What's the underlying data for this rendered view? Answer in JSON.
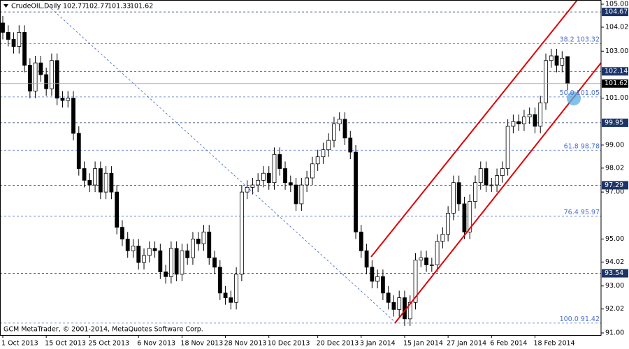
{
  "chart_data": {
    "type": "candlestick",
    "symbol": "CrudeOIL,Daily",
    "footer": "GCM MetaTrader, © 2001-2014, MetaQuotes Software Corp.",
    "up_color": "#ffffff",
    "down_color": "#000000",
    "categories": [
      "1 Oct 2013",
      null,
      null,
      null,
      null,
      null,
      null,
      null,
      "15 Oct 2013",
      null,
      null,
      null,
      null,
      null,
      null,
      null,
      "25 Oct 2013",
      null,
      null,
      null,
      null,
      null,
      null,
      null,
      null,
      "6 Nov 2013",
      null,
      null,
      null,
      null,
      null,
      null,
      null,
      "18 Nov 2013",
      null,
      null,
      null,
      null,
      null,
      null,
      null,
      "28 Nov 2013",
      null,
      null,
      null,
      null,
      null,
      null,
      null,
      "10 Dec 2013",
      null,
      null,
      null,
      null,
      null,
      null,
      null,
      null,
      "20 Dec 2013",
      null,
      null,
      null,
      null,
      null,
      null,
      null,
      "3 Jan 2014",
      null,
      null,
      null,
      null,
      null,
      null,
      null,
      "15 Jan 2014",
      null,
      null,
      null,
      null,
      null,
      null,
      null,
      "27 Jan 2014",
      null,
      null,
      null,
      null,
      null,
      null,
      null,
      "6 Feb 2014",
      null,
      null,
      null,
      null,
      null,
      null,
      null,
      "18 Feb 2014",
      null,
      null,
      null,
      null,
      null,
      null
    ],
    "open": [
      104.2,
      103.8,
      103.5,
      103.2,
      103.8,
      102.4,
      101.3,
      102.5,
      102.0,
      101.4,
      102.6,
      101.0,
      100.9,
      101.0,
      99.5,
      98.0,
      97.5,
      97.3,
      98.0,
      97.0,
      97.8,
      97.0,
      95.5,
      95.0,
      94.5,
      94.7,
      94.0,
      94.3,
      94.6,
      94.5,
      93.6,
      93.4,
      94.6,
      93.5,
      94.5,
      94.2,
      95.0,
      94.8,
      95.3,
      94.2,
      93.8,
      92.7,
      92.5,
      92.3,
      93.5,
      97.0,
      97.2,
      97.3,
      97.5,
      97.8,
      97.4,
      98.6,
      98.0,
      97.4,
      97.3,
      96.5,
      97.3,
      97.6,
      98.2,
      98.5,
      98.8,
      99.2,
      99.9,
      100.1,
      99.3,
      98.7,
      95.3,
      94.5,
      93.8,
      93.2,
      93.4,
      92.7,
      92.3,
      92.0,
      92.5,
      91.6,
      92.3,
      94.1,
      94.2,
      93.9,
      93.9,
      94.9,
      95.2,
      96.1,
      97.4,
      96.5,
      95.3,
      96.6,
      97.4,
      98.0,
      97.3,
      97.3,
      97.7,
      98.0,
      99.8,
      100.0,
      99.9,
      100.2,
      100.3,
      99.8,
      100.8,
      102.6,
      102.8,
      102.4,
      102.77
    ],
    "high": [
      104.5,
      104.1,
      103.8,
      104.1,
      104.1,
      102.7,
      102.8,
      102.8,
      102.3,
      102.9,
      102.9,
      101.3,
      101.3,
      101.3,
      99.8,
      98.3,
      97.8,
      98.3,
      98.3,
      98.1,
      98.1,
      97.3,
      95.8,
      95.3,
      95.0,
      95.0,
      94.6,
      94.9,
      94.9,
      94.8,
      93.9,
      94.9,
      94.9,
      94.8,
      94.8,
      95.3,
      95.3,
      95.6,
      95.6,
      94.5,
      94.1,
      93.0,
      92.8,
      93.8,
      97.3,
      97.5,
      97.6,
      97.8,
      98.1,
      98.1,
      98.9,
      98.9,
      98.3,
      97.7,
      97.6,
      97.6,
      97.9,
      98.5,
      98.8,
      99.1,
      99.5,
      100.2,
      100.4,
      100.4,
      99.6,
      99.0,
      95.6,
      94.8,
      94.1,
      93.7,
      93.7,
      93.0,
      92.6,
      92.8,
      92.8,
      92.6,
      94.4,
      94.5,
      94.5,
      94.2,
      95.2,
      95.5,
      96.4,
      97.7,
      97.7,
      96.8,
      96.9,
      97.7,
      98.3,
      98.3,
      97.6,
      98.0,
      98.3,
      100.1,
      100.3,
      100.3,
      100.5,
      100.6,
      100.6,
      101.1,
      102.9,
      103.1,
      103.1,
      103.0,
      102.77
    ],
    "low": [
      103.5,
      103.2,
      102.9,
      102.9,
      102.1,
      101.0,
      101.0,
      101.7,
      101.1,
      101.1,
      100.7,
      100.6,
      100.6,
      99.2,
      97.7,
      97.2,
      97.0,
      97.0,
      96.7,
      96.7,
      96.7,
      95.2,
      94.7,
      94.2,
      94.2,
      93.7,
      93.7,
      94.0,
      94.2,
      93.3,
      93.1,
      93.1,
      93.2,
      93.2,
      93.9,
      93.9,
      94.5,
      94.5,
      93.9,
      93.5,
      92.4,
      92.2,
      92.0,
      92.0,
      93.2,
      96.7,
      96.9,
      97.0,
      97.2,
      97.1,
      97.1,
      97.7,
      97.1,
      97.0,
      96.2,
      96.2,
      97.0,
      97.3,
      97.9,
      98.2,
      98.5,
      98.9,
      99.6,
      99.0,
      98.4,
      95.0,
      94.2,
      93.5,
      92.9,
      92.9,
      92.4,
      92.0,
      91.7,
      91.7,
      91.3,
      91.3,
      92.0,
      93.8,
      93.6,
      93.6,
      93.6,
      94.6,
      94.9,
      95.8,
      96.2,
      95.0,
      95.0,
      96.3,
      97.1,
      97.0,
      97.0,
      97.0,
      97.4,
      97.7,
      99.5,
      99.6,
      99.6,
      99.9,
      99.5,
      99.5,
      100.5,
      102.3,
      102.1,
      102.1,
      101.33
    ],
    "close": [
      103.8,
      103.5,
      103.2,
      103.8,
      102.4,
      101.3,
      102.5,
      102.0,
      101.4,
      102.6,
      101.0,
      100.9,
      101.0,
      99.5,
      98.0,
      97.5,
      97.3,
      98.0,
      97.0,
      97.8,
      97.0,
      95.5,
      95.0,
      94.5,
      94.7,
      94.0,
      94.3,
      94.6,
      94.5,
      93.6,
      93.4,
      94.6,
      93.5,
      94.5,
      94.2,
      95.0,
      94.8,
      95.3,
      94.2,
      93.8,
      92.7,
      92.5,
      92.3,
      93.5,
      97.0,
      97.2,
      97.3,
      97.5,
      97.8,
      97.4,
      98.6,
      98.0,
      97.4,
      97.3,
      96.5,
      97.3,
      97.6,
      98.2,
      98.5,
      98.8,
      99.2,
      99.9,
      100.1,
      99.3,
      98.7,
      95.3,
      94.5,
      93.8,
      93.2,
      93.4,
      92.7,
      92.3,
      92.0,
      92.5,
      91.6,
      92.3,
      94.1,
      94.2,
      93.9,
      93.9,
      94.9,
      95.2,
      96.1,
      97.4,
      96.5,
      95.3,
      96.6,
      97.4,
      98.0,
      97.3,
      97.3,
      97.7,
      98.0,
      99.8,
      100.0,
      99.9,
      100.2,
      100.3,
      99.8,
      100.8,
      102.6,
      102.8,
      102.4,
      102.7,
      101.62
    ],
    "ylim": [
      91,
      105
    ],
    "yticks": [
      {
        "value": 105,
        "label": "105.00"
      },
      104.02,
      {
        "value": 103,
        "label": "103.00"
      },
      {
        "value": 101,
        "label": "101.00"
      },
      {
        "value": 99,
        "label": "99.00"
      },
      98.02,
      {
        "value": 97,
        "label": "97.00"
      },
      {
        "value": 95,
        "label": "95.00"
      },
      94.02,
      {
        "value": 93,
        "label": "93.00"
      },
      92.02,
      {
        "value": 91,
        "label": "91.00"
      }
    ],
    "levels": [
      104.67,
      102.14,
      99.95,
      97.29,
      93.54
    ],
    "level_color": "#1c3468",
    "fibonacci": [
      {
        "level": "38.2",
        "value": 103.32
      },
      {
        "level": "50.0",
        "value": 101.05
      },
      {
        "level": "61.8",
        "value": 98.78
      },
      {
        "level": "76.4",
        "value": 95.97
      },
      {
        "level": "100.0",
        "value": 91.42
      }
    ],
    "fib_color": "#4a6fd0"
  }
}
